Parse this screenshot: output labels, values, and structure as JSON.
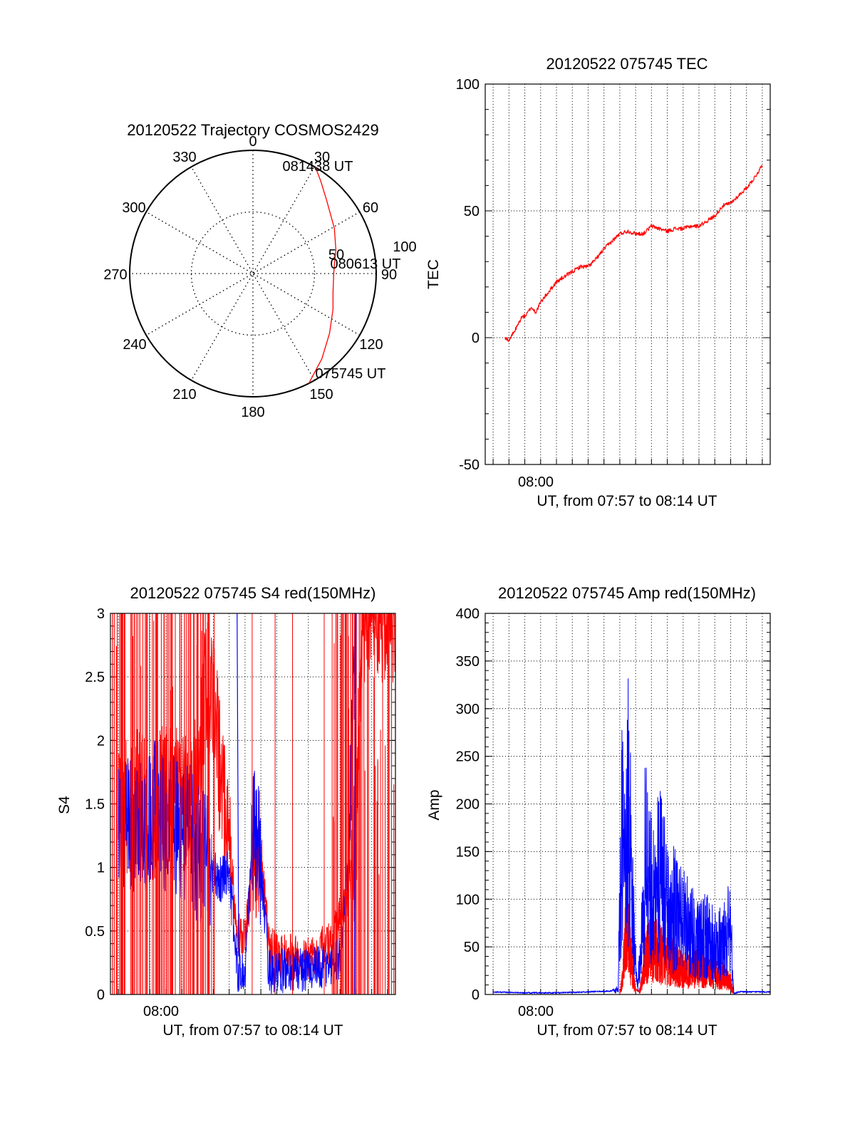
{
  "colors": {
    "red": "#ff0000",
    "blue": "#0000ff",
    "axis": "#000000",
    "grid": "#000000"
  },
  "chart_data": [
    {
      "type": "polar",
      "title": "20120522 Trajectory COSMOS2429",
      "angle_labels": [
        "0",
        "30",
        "60",
        "90",
        "120",
        "150",
        "180",
        "210",
        "240",
        "270",
        "300",
        "330"
      ],
      "radius_labels": [
        "50",
        "100"
      ],
      "start_label": "075745 UT",
      "mid_label": "080613 UT",
      "end_label": "081438 UT",
      "series": [
        {
          "color": "red",
          "azimuth": [
            153,
            141,
            128,
            114,
            103,
            95,
            90,
            83,
            74,
            61,
            45,
            36,
            30.5
          ],
          "zenith": [
            90,
            80,
            71,
            64,
            60,
            59,
            59,
            60,
            63,
            68,
            76,
            84,
            90
          ]
        }
      ]
    },
    {
      "type": "line",
      "title": "20120522 075745 TEC",
      "ylabel": "TEC",
      "xlabel": "UT, from 07:57 to 08:14 UT",
      "xtick_labels": [
        "08:00"
      ],
      "ylim": [
        -50,
        100
      ],
      "yticks": [
        -50,
        0,
        50,
        100
      ],
      "xlim_minutes_after_0757": [
        -0.5,
        17.5
      ],
      "xtick_position_minutes_after_0757": 2,
      "series": [
        {
          "color": "red",
          "x_minutes_after_0757": [
            0.75,
            1.0,
            1.4,
            1.8,
            2.1,
            2.4,
            2.7,
            3.0,
            3.5,
            4.0,
            4.5,
            5.0,
            5.5,
            6.0,
            6.5,
            7.0,
            7.5,
            8.0,
            8.5,
            9.0,
            9.5,
            10.0,
            10.5,
            11.0,
            11.5,
            12.0,
            12.5,
            13.0,
            13.5,
            14.0,
            14.5,
            15.0,
            15.5,
            16.0,
            16.5,
            17.0
          ],
          "y": [
            0,
            -1,
            3,
            8,
            9,
            12,
            10,
            14,
            18,
            22,
            24,
            26,
            28,
            28,
            31,
            35,
            38,
            41,
            42,
            41,
            41,
            44,
            43,
            42,
            43,
            43,
            44,
            44,
            46,
            48,
            52,
            53,
            56,
            59,
            63,
            68
          ]
        }
      ]
    },
    {
      "type": "line",
      "title": "20120522 075745 S4 red(150MHz)",
      "ylabel": "S4",
      "xlabel": "UT, from 07:57 to 08:14 UT",
      "xtick_labels": [
        "08:00"
      ],
      "ylim": [
        0,
        3
      ],
      "yticks": [
        0,
        0.5,
        1,
        1.5,
        2,
        2.5,
        3
      ],
      "ytick_labels": [
        "0",
        "0.5",
        "1",
        "1.5",
        "2",
        "2.5",
        "3"
      ],
      "xlim_minutes_after_0757": [
        -0.5,
        17.5
      ],
      "xtick_position_minutes_after_0757": 2,
      "series": [
        {
          "color": "red",
          "x_minutes_after_0757": [
            0.0,
            0.5,
            1.0,
            1.5,
            2.0,
            2.5,
            3.0,
            3.5,
            4.0,
            4.5,
            5.0,
            5.5,
            6.0,
            6.5,
            7.0,
            7.5,
            8.0,
            8.5,
            9.0,
            9.5,
            10.0,
            10.5,
            11.0,
            11.5,
            12.0,
            12.5,
            13.0,
            13.5,
            14.0,
            14.5,
            15.0,
            15.5,
            16.0,
            16.5,
            17.0,
            17.5
          ],
          "y": [
            1.4,
            1.5,
            1.5,
            1.6,
            1.4,
            1.5,
            1.5,
            1.6,
            1.5,
            1.5,
            1.7,
            2.4,
            2.4,
            1.6,
            1.2,
            0.5,
            0.4,
            1.0,
            1.1,
            0.4,
            0.3,
            0.3,
            0.3,
            0.3,
            0.3,
            0.3,
            0.4,
            0.4,
            0.6,
            0.8,
            1.2,
            3,
            3,
            3,
            3,
            3
          ]
        },
        {
          "color": "blue",
          "x_minutes_after_0757": [
            0.0,
            0.5,
            1.0,
            1.5,
            2.0,
            2.5,
            3.0,
            3.5,
            4.0,
            4.5,
            5.0,
            5.5,
            6.0,
            6.5,
            7.0,
            7.5,
            8.0,
            8.5,
            9.0,
            9.5,
            10.0,
            10.5,
            11.0,
            11.5,
            12.0,
            12.5,
            13.0,
            13.5,
            14.0,
            14.5,
            15.0
          ],
          "y": [
            1.3,
            1.4,
            1.2,
            1.3,
            1.4,
            1.5,
            1.3,
            1.4,
            1.2,
            1.3,
            1.1,
            1.1,
            0.95,
            0.9,
            1.0,
            0.2,
            0.15,
            1.3,
            1.0,
            0.2,
            0.15,
            0.2,
            0.2,
            0.2,
            0.2,
            0.2,
            0.2,
            0.25,
            0.3,
            1.0,
            3
          ]
        }
      ]
    },
    {
      "type": "line",
      "title": "20120522 075745 Amp red(150MHz)",
      "ylabel": "Amp",
      "xlabel": "UT, from 07:57 to 08:14 UT",
      "xtick_labels": [
        "08:00"
      ],
      "ylim": [
        0,
        400
      ],
      "yticks": [
        0,
        50,
        100,
        150,
        200,
        250,
        300,
        350,
        400
      ],
      "xlim_minutes_after_0757": [
        -0.5,
        17.5
      ],
      "xtick_position_minutes_after_0757": 2,
      "series": [
        {
          "color": "red",
          "x_minutes_after_0757": [
            8.0,
            8.2,
            8.4,
            8.6,
            8.8,
            9.0,
            9.2,
            9.4,
            9.6,
            9.8,
            10.0,
            10.5,
            11.0,
            11.5,
            12.0,
            12.5,
            13.0,
            13.5,
            14.0,
            14.5,
            15.0,
            15.2
          ],
          "y": [
            0,
            30,
            150,
            80,
            40,
            5,
            2,
            20,
            60,
            70,
            80,
            70,
            60,
            50,
            40,
            40,
            45,
            45,
            35,
            30,
            20,
            0
          ]
        },
        {
          "color": "blue",
          "x_minutes_after_0757": [
            0.0,
            2.0,
            4.0,
            6.0,
            7.5,
            7.9,
            8.1,
            8.3,
            8.5,
            8.7,
            8.9,
            9.1,
            9.3,
            9.6,
            9.8,
            10.0,
            10.5,
            11.0,
            11.5,
            12.0,
            12.5,
            13.0,
            13.5,
            14.0,
            14.5,
            15.0,
            15.2,
            15.5,
            17.5
          ],
          "y": [
            2,
            1,
            1,
            2,
            3,
            10,
            280,
            200,
            310,
            260,
            100,
            10,
            60,
            230,
            210,
            170,
            200,
            160,
            140,
            120,
            110,
            90,
            100,
            80,
            90,
            110,
            0,
            2,
            2
          ]
        }
      ]
    }
  ]
}
